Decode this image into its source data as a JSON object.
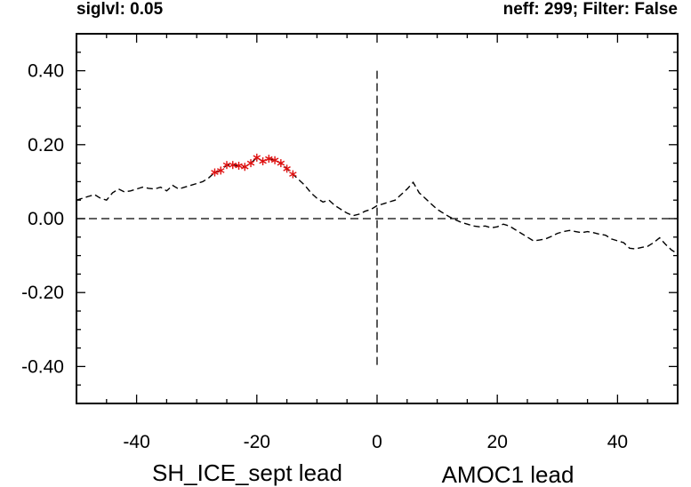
{
  "header": {
    "left": "siglvl: 0.05",
    "right": "neff: 299; Filter: False"
  },
  "chart_data": {
    "type": "line",
    "title": "",
    "xlabel_left": "SH_ICE_sept lead",
    "xlabel_right": "AMOC1 lead",
    "ylabel": "",
    "xlim": [
      -50,
      50
    ],
    "ylim": [
      -0.5,
      0.5
    ],
    "x_ticks": [
      -40,
      -20,
      0,
      20,
      40
    ],
    "x_tick_labels": [
      "-40",
      "-20",
      "0",
      "20",
      "40"
    ],
    "y_ticks": [
      -0.4,
      -0.2,
      0.0,
      0.2,
      0.4
    ],
    "y_tick_labels": [
      "-0.40",
      "-0.20",
      "0.00",
      "0.20",
      "0.40"
    ],
    "reference_lines": [
      {
        "orientation": "horizontal",
        "value": 0.0,
        "style": "dashed"
      },
      {
        "orientation": "vertical",
        "value": 0,
        "from": -0.4,
        "to": 0.4,
        "style": "dashed"
      }
    ],
    "series": [
      {
        "name": "lagged correlation",
        "style": "dashed",
        "color": "#000000",
        "points": [
          [
            -50,
            0.05
          ],
          [
            -49,
            0.055
          ],
          [
            -48,
            0.06
          ],
          [
            -47,
            0.065
          ],
          [
            -46,
            0.055
          ],
          [
            -45,
            0.05
          ],
          [
            -44,
            0.07
          ],
          [
            -43,
            0.08
          ],
          [
            -42,
            0.072
          ],
          [
            -41,
            0.075
          ],
          [
            -40,
            0.08
          ],
          [
            -39,
            0.085
          ],
          [
            -38,
            0.082
          ],
          [
            -37,
            0.08
          ],
          [
            -36,
            0.085
          ],
          [
            -35,
            0.075
          ],
          [
            -34,
            0.09
          ],
          [
            -33,
            0.08
          ],
          [
            -32,
            0.085
          ],
          [
            -31,
            0.09
          ],
          [
            -30,
            0.095
          ],
          [
            -29,
            0.1
          ],
          [
            -28,
            0.11
          ],
          [
            -27,
            0.125
          ],
          [
            -26,
            0.13
          ],
          [
            -25,
            0.145
          ],
          [
            -24,
            0.145
          ],
          [
            -23,
            0.143
          ],
          [
            -22,
            0.14
          ],
          [
            -21,
            0.15
          ],
          [
            -20,
            0.165
          ],
          [
            -19,
            0.155
          ],
          [
            -18,
            0.162
          ],
          [
            -17,
            0.158
          ],
          [
            -16,
            0.15
          ],
          [
            -15,
            0.135
          ],
          [
            -14,
            0.12
          ],
          [
            -13,
            0.105
          ],
          [
            -12,
            0.09
          ],
          [
            -11,
            0.07
          ],
          [
            -10,
            0.055
          ],
          [
            -9,
            0.045
          ],
          [
            -8,
            0.05
          ],
          [
            -7,
            0.035
          ],
          [
            -6,
            0.025
          ],
          [
            -5,
            0.015
          ],
          [
            -4,
            0.008
          ],
          [
            -3,
            0.012
          ],
          [
            -2,
            0.02
          ],
          [
            -1,
            0.025
          ],
          [
            0,
            0.035
          ],
          [
            1,
            0.04
          ],
          [
            2,
            0.045
          ],
          [
            3,
            0.05
          ],
          [
            4,
            0.065
          ],
          [
            5,
            0.08
          ],
          [
            6,
            0.098
          ],
          [
            7,
            0.07
          ],
          [
            8,
            0.055
          ],
          [
            9,
            0.04
          ],
          [
            10,
            0.025
          ],
          [
            11,
            0.015
          ],
          [
            12,
            0.005
          ],
          [
            13,
            -0.003
          ],
          [
            14,
            -0.01
          ],
          [
            15,
            -0.015
          ],
          [
            16,
            -0.02
          ],
          [
            17,
            -0.022
          ],
          [
            18,
            -0.02
          ],
          [
            19,
            -0.025
          ],
          [
            20,
            -0.022
          ],
          [
            21,
            -0.015
          ],
          [
            22,
            -0.02
          ],
          [
            23,
            -0.03
          ],
          [
            24,
            -0.04
          ],
          [
            25,
            -0.05
          ],
          [
            26,
            -0.06
          ],
          [
            27,
            -0.058
          ],
          [
            28,
            -0.055
          ],
          [
            29,
            -0.048
          ],
          [
            30,
            -0.04
          ],
          [
            31,
            -0.035
          ],
          [
            32,
            -0.032
          ],
          [
            33,
            -0.035
          ],
          [
            34,
            -0.038
          ],
          [
            35,
            -0.035
          ],
          [
            36,
            -0.038
          ],
          [
            37,
            -0.042
          ],
          [
            38,
            -0.045
          ],
          [
            39,
            -0.055
          ],
          [
            40,
            -0.06
          ],
          [
            41,
            -0.065
          ],
          [
            42,
            -0.08
          ],
          [
            43,
            -0.082
          ],
          [
            44,
            -0.078
          ],
          [
            45,
            -0.075
          ],
          [
            46,
            -0.065
          ],
          [
            47,
            -0.052
          ],
          [
            48,
            -0.07
          ],
          [
            49,
            -0.085
          ],
          [
            50,
            -0.095
          ]
        ]
      },
      {
        "name": "significant at siglvl 0.05",
        "style": "marker",
        "marker": "asterisk",
        "color": "#e01010",
        "points": [
          [
            -27,
            0.125
          ],
          [
            -26,
            0.13
          ],
          [
            -25,
            0.145
          ],
          [
            -24,
            0.145
          ],
          [
            -23,
            0.143
          ],
          [
            -22,
            0.14
          ],
          [
            -21,
            0.15
          ],
          [
            -20,
            0.165
          ],
          [
            -19,
            0.155
          ],
          [
            -18,
            0.162
          ],
          [
            -17,
            0.158
          ],
          [
            -16,
            0.15
          ],
          [
            -15,
            0.135
          ],
          [
            -14,
            0.12
          ]
        ]
      }
    ],
    "grid": false,
    "legend": "none"
  }
}
